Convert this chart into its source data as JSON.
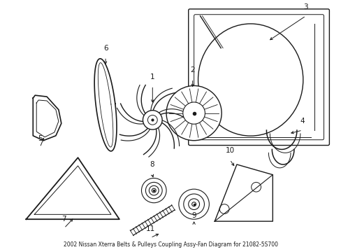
{
  "title": "2002 Nissan Xterra Belts & Pulleys Coupling Assy-Fan Diagram for 21082-5S700",
  "bg_color": "#ffffff",
  "line_color": "#1a1a1a",
  "text_color": "#1a1a1a",
  "fig_width": 4.89,
  "fig_height": 3.6,
  "dpi": 100
}
